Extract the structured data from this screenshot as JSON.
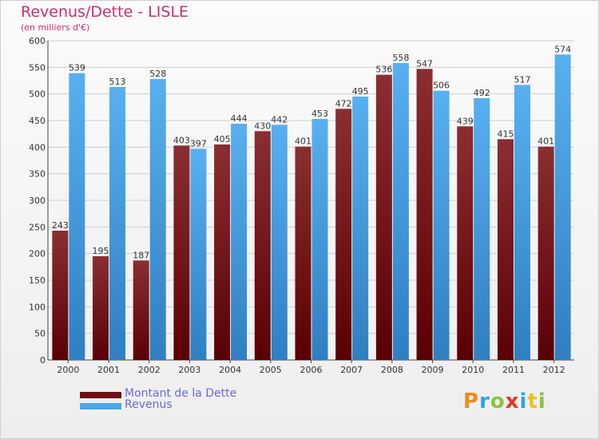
{
  "header": {
    "title": "Revenus/Dette - LISLE",
    "subtitle": "(en milliers d'€)"
  },
  "legend": [
    {
      "label": "Montant de la Dette",
      "color": "#6e0f12"
    },
    {
      "label": "Revenus",
      "color": "#4aa6ea"
    }
  ],
  "logo": {
    "text": "Proxiti",
    "letters": [
      "P",
      "r",
      "o",
      "x",
      "i",
      "t",
      "i"
    ],
    "colors": [
      "#f08a1e",
      "#29a8e0",
      "#8cc43c",
      "#e8342a",
      "#29a8e0",
      "#f0c01e",
      "#8cc43c"
    ]
  },
  "chart_data": {
    "type": "bar",
    "categories": [
      "2000",
      "2001",
      "2002",
      "2003",
      "2004",
      "2005",
      "2006",
      "2007",
      "2008",
      "2009",
      "2010",
      "2011",
      "2012"
    ],
    "series": [
      {
        "name": "Montant de la Dette",
        "values": [
          243,
          195,
          187,
          403,
          405,
          430,
          401,
          472,
          536,
          547,
          439,
          415,
          401
        ],
        "color": "#6e0f12"
      },
      {
        "name": "Revenus",
        "values": [
          539,
          513,
          528,
          397,
          444,
          442,
          453,
          495,
          558,
          506,
          492,
          517,
          574
        ],
        "color": "#4aa6ea"
      }
    ],
    "ylim": [
      0,
      600
    ],
    "yticks": [
      0,
      50,
      100,
      150,
      200,
      250,
      300,
      350,
      400,
      450,
      500,
      550,
      600
    ],
    "grid": true,
    "legend_position": "bottom-left"
  }
}
